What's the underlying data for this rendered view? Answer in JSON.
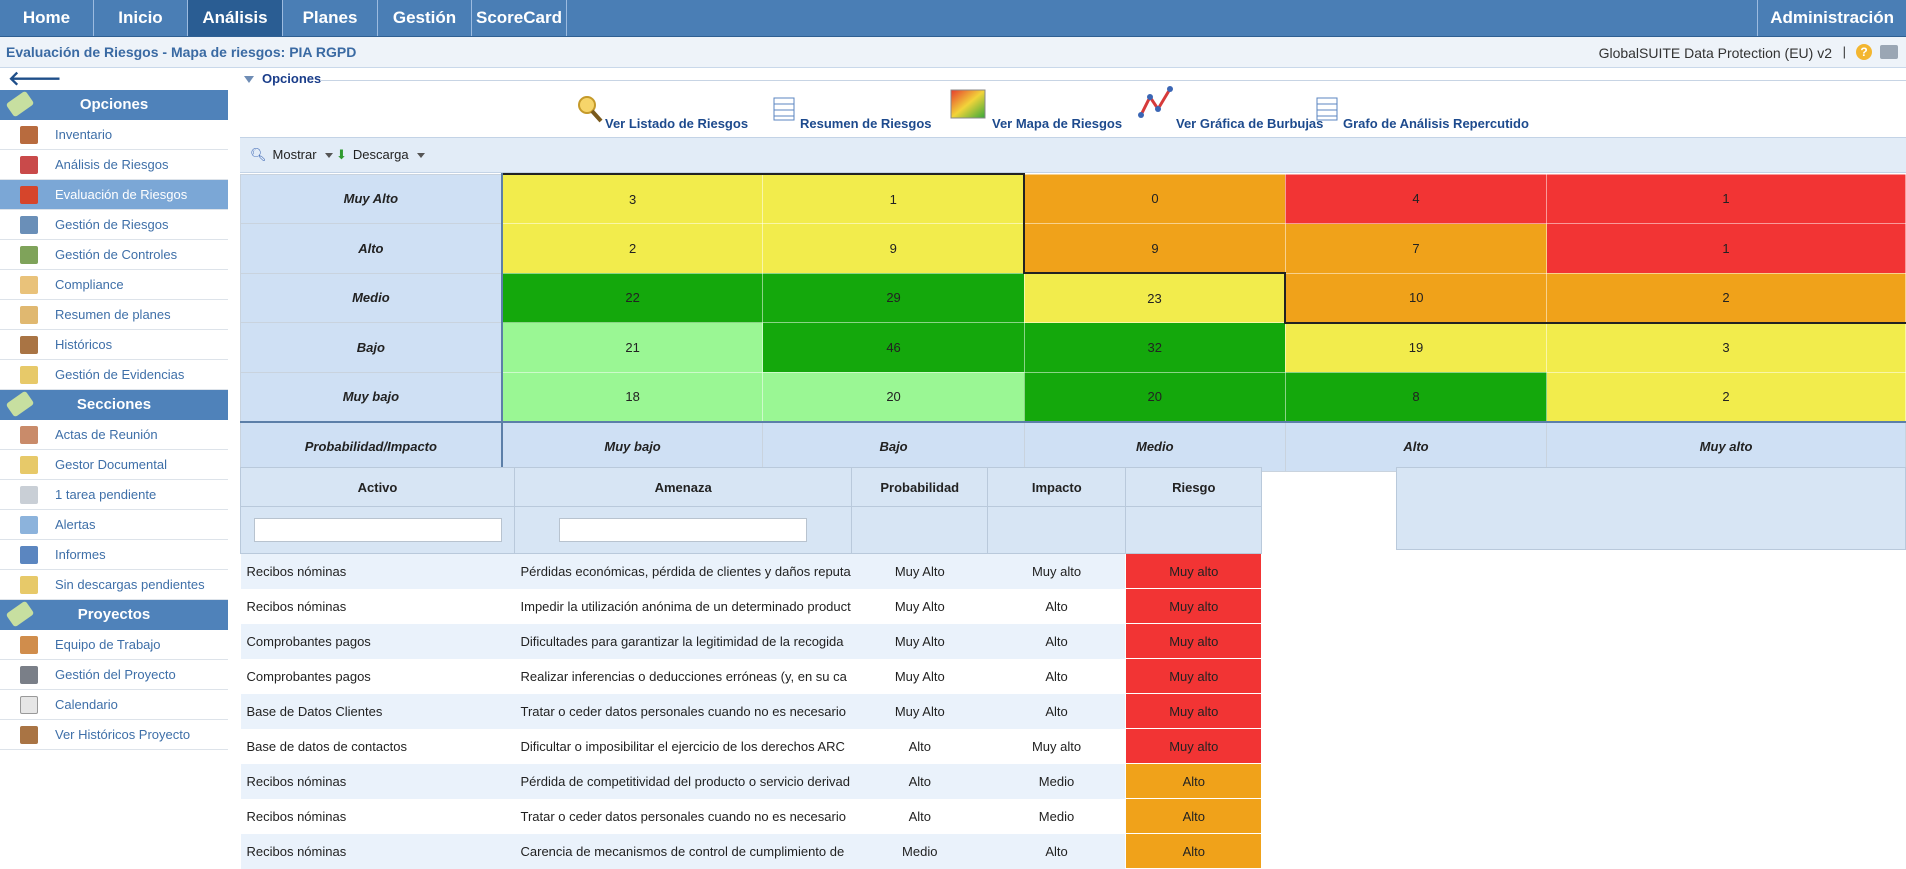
{
  "nav": {
    "tabs": [
      "Home",
      "Inicio",
      "Análisis",
      "Planes",
      "Gestión",
      "ScoreCard"
    ],
    "active": "Análisis",
    "admin": "Administración"
  },
  "breadcrumb": {
    "text": "Evaluación de Riesgos  - Mapa de riesgos: PIA RGPD",
    "product": "GlobalSUITE Data Protection (EU) v2",
    "separator": "|"
  },
  "sidebar": {
    "sections": [
      {
        "title": "Opciones",
        "items": [
          "Inventario",
          "Análisis de Riesgos",
          "Evaluación de Riesgos",
          "Gestión de Riesgos",
          "Gestión de Controles",
          "Compliance",
          "Resumen de planes",
          "Históricos",
          "Gestión de Evidencias"
        ]
      },
      {
        "title": "Secciones",
        "items": [
          "Actas de Reunión",
          "Gestor Documental",
          "1 tarea pendiente",
          "Alertas",
          "Informes",
          "Sin descargas pendientes"
        ]
      },
      {
        "title": "Proyectos",
        "items": [
          "Equipo de Trabajo",
          "Gestión del Proyecto",
          "Calendario",
          "Ver Históricos Proyecto"
        ]
      }
    ],
    "active_item": "Evaluación de Riesgos"
  },
  "options": {
    "title": "Opciones",
    "actions": [
      "Ver Listado de Riesgos",
      "Resumen de Riesgos",
      "Ver Mapa de Riesgos",
      "Ver Gráfica de Burbujas",
      "Grafo de Análisis Repercutido"
    ]
  },
  "toolbar": {
    "show": "Mostrar",
    "download": "Descarga"
  },
  "heatmap": {
    "rows": [
      "Muy Alto",
      "Alto",
      "Medio",
      "Bajo",
      "Muy bajo"
    ],
    "cols": [
      "Muy bajo",
      "Bajo",
      "Medio",
      "Alto",
      "Muy alto"
    ],
    "corner": "Probabilidad/Impacto",
    "values": [
      [
        3,
        1,
        0,
        4,
        1
      ],
      [
        2,
        9,
        9,
        7,
        1
      ],
      [
        22,
        29,
        23,
        10,
        2
      ],
      [
        21,
        46,
        32,
        19,
        3
      ],
      [
        18,
        20,
        20,
        8,
        2
      ]
    ],
    "colors": [
      [
        "#f2ec4c",
        "#f2ec4c",
        "#f0a21a",
        "#f23434",
        "#f23434"
      ],
      [
        "#f2ec4c",
        "#f2ec4c",
        "#f0a21a",
        "#f0a21a",
        "#f23434"
      ],
      [
        "#14a80c",
        "#14a80c",
        "#f2ec4c",
        "#f0a21a",
        "#f0a21a"
      ],
      [
        "#9af794",
        "#14a80c",
        "#14a80c",
        "#f2ec4c",
        "#f2ec4c"
      ],
      [
        "#9af794",
        "#9af794",
        "#14a80c",
        "#14a80c",
        "#f2ec4c"
      ]
    ]
  },
  "risk_table": {
    "headers": [
      "Activo",
      "Amenaza",
      "Probabilidad",
      "Impacto",
      "Riesgo"
    ],
    "rows": [
      [
        "Recibos nóminas",
        "Pérdidas económicas, pérdida de clientes y daños reputa",
        "Muy Alto",
        "Muy alto",
        "Muy alto"
      ],
      [
        "Recibos nóminas",
        "Impedir la utilización anónima de un determinado product",
        "Muy Alto",
        "Alto",
        "Muy alto"
      ],
      [
        "Comprobantes pagos",
        "Dificultades para garantizar la legitimidad de la recogida",
        "Muy Alto",
        "Alto",
        "Muy alto"
      ],
      [
        "Comprobantes pagos",
        "Realizar inferencias o deducciones erróneas (y, en su ca",
        "Muy Alto",
        "Alto",
        "Muy alto"
      ],
      [
        "Base de Datos Clientes",
        "Tratar o ceder datos personales cuando no es necesario",
        "Muy Alto",
        "Alto",
        "Muy alto"
      ],
      [
        "Base de datos de contactos",
        "Dificultar o imposibilitar el ejercicio de los derechos ARC",
        "Alto",
        "Muy alto",
        "Muy alto"
      ],
      [
        "Recibos nóminas",
        "Pérdida de competitividad del producto o servicio derivad",
        "Alto",
        "Medio",
        "Alto"
      ],
      [
        "Recibos nóminas",
        "Tratar o ceder datos personales cuando no es necesario",
        "Alto",
        "Medio",
        "Alto"
      ],
      [
        "Recibos nóminas",
        "Carencia de mecanismos de control de cumplimiento de",
        "Medio",
        "Alto",
        "Alto"
      ]
    ],
    "risk_colors": {
      "Muy alto": "#f23434",
      "Alto": "#f0a21a"
    }
  }
}
